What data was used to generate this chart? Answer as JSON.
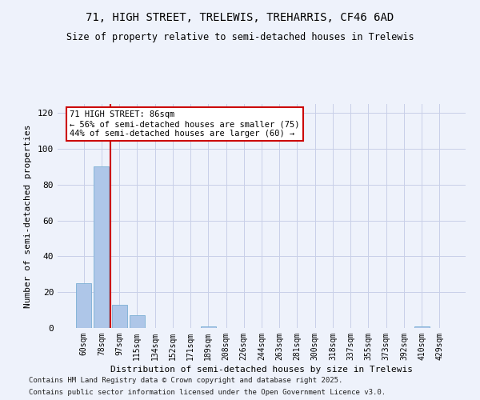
{
  "title1": "71, HIGH STREET, TRELEWIS, TREHARRIS, CF46 6AD",
  "title2": "Size of property relative to semi-detached houses in Trelewis",
  "xlabel": "Distribution of semi-detached houses by size in Trelewis",
  "ylabel": "Number of semi-detached properties",
  "categories": [
    "60sqm",
    "78sqm",
    "97sqm",
    "115sqm",
    "134sqm",
    "152sqm",
    "171sqm",
    "189sqm",
    "208sqm",
    "226sqm",
    "244sqm",
    "263sqm",
    "281sqm",
    "300sqm",
    "318sqm",
    "337sqm",
    "355sqm",
    "373sqm",
    "392sqm",
    "410sqm",
    "429sqm"
  ],
  "values": [
    25,
    90,
    13,
    7,
    0,
    0,
    0,
    1,
    0,
    0,
    0,
    0,
    0,
    0,
    0,
    0,
    0,
    0,
    0,
    1,
    0
  ],
  "bar_color": "#aec6e8",
  "bar_edge_color": "#7bafd4",
  "vline_x_idx": 1.5,
  "vline_color": "#cc0000",
  "annotation_title": "71 HIGH STREET: 86sqm",
  "annotation_line2": "← 56% of semi-detached houses are smaller (75)",
  "annotation_line3": "44% of semi-detached houses are larger (60) →",
  "annotation_box_color": "#cc0000",
  "ylim": [
    0,
    125
  ],
  "yticks": [
    0,
    20,
    40,
    60,
    80,
    100,
    120
  ],
  "footer1": "Contains HM Land Registry data © Crown copyright and database right 2025.",
  "footer2": "Contains public sector information licensed under the Open Government Licence v3.0.",
  "bg_color": "#eef2fb",
  "plot_bg_color": "#eef2fb",
  "grid_color": "#c8cfe8"
}
